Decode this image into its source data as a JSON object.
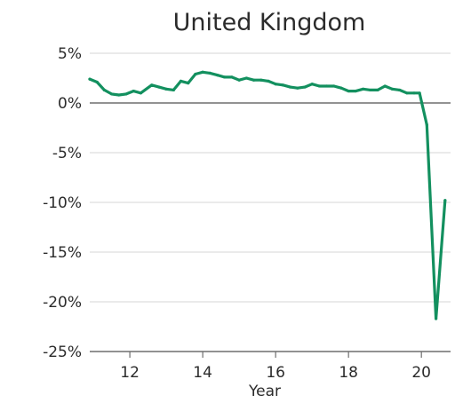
{
  "chart_data": {
    "type": "line",
    "title": "United Kingdom",
    "xlabel": "Year",
    "ylabel": "",
    "xlim": [
      2010.9,
      2020.8
    ],
    "ylim": [
      -25,
      5
    ],
    "x_ticks": [
      {
        "value": 2012,
        "label": "12"
      },
      {
        "value": 2014,
        "label": "14"
      },
      {
        "value": 2016,
        "label": "16"
      },
      {
        "value": 2018,
        "label": "18"
      },
      {
        "value": 2020,
        "label": "20"
      }
    ],
    "y_ticks": [
      {
        "value": 5,
        "label": "5%"
      },
      {
        "value": 0,
        "label": "0%"
      },
      {
        "value": -5,
        "label": "-5%"
      },
      {
        "value": -10,
        "label": "-10%"
      },
      {
        "value": -15,
        "label": "-15%"
      },
      {
        "value": -20,
        "label": "-20%"
      },
      {
        "value": -25,
        "label": "-25%"
      }
    ],
    "grid": true,
    "series": [
      {
        "color": "#13905f",
        "x": [
          2010.9,
          2011.1,
          2011.3,
          2011.5,
          2011.7,
          2011.9,
          2012.1,
          2012.3,
          2012.6,
          2012.8,
          2013.0,
          2013.2,
          2013.4,
          2013.6,
          2013.8,
          2014.0,
          2014.2,
          2014.4,
          2014.6,
          2014.8,
          2015.0,
          2015.2,
          2015.4,
          2015.6,
          2015.8,
          2016.0,
          2016.2,
          2016.4,
          2016.6,
          2016.8,
          2017.0,
          2017.2,
          2017.4,
          2017.6,
          2017.8,
          2018.0,
          2018.2,
          2018.4,
          2018.6,
          2018.8,
          2019.0,
          2019.2,
          2019.4,
          2019.6,
          2019.8,
          2019.95,
          2020.15,
          2020.4,
          2020.65
        ],
        "y": [
          2.4,
          2.1,
          1.3,
          0.9,
          0.8,
          0.9,
          1.2,
          1.0,
          1.8,
          1.6,
          1.4,
          1.3,
          2.2,
          2.0,
          2.9,
          3.1,
          3.0,
          2.8,
          2.6,
          2.6,
          2.3,
          2.5,
          2.3,
          2.3,
          2.2,
          1.9,
          1.8,
          1.6,
          1.5,
          1.6,
          1.9,
          1.7,
          1.7,
          1.7,
          1.5,
          1.2,
          1.2,
          1.4,
          1.3,
          1.3,
          1.7,
          1.4,
          1.3,
          1.0,
          1.0,
          1.0,
          -2.2,
          -21.7,
          -9.8
        ]
      }
    ]
  }
}
